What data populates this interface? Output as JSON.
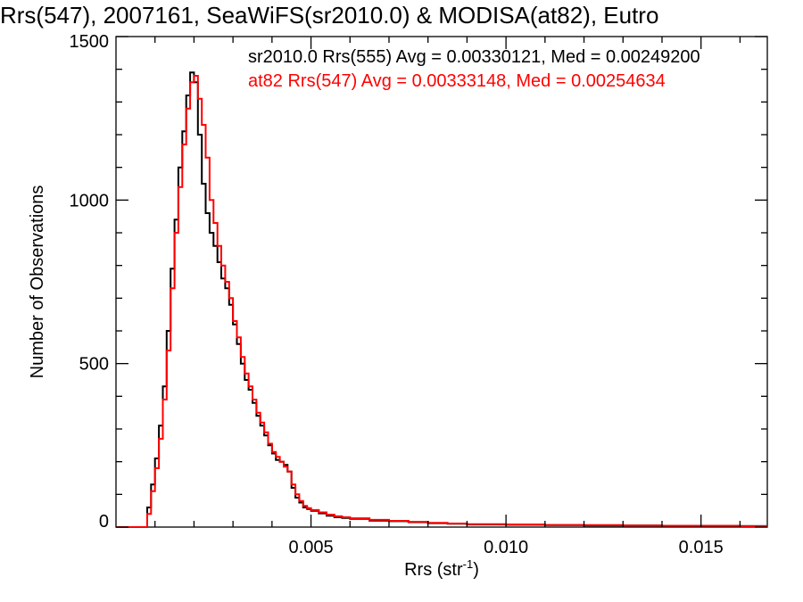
{
  "chart_data": {
    "type": "line",
    "title": "Rrs(547), 2007161, SeaWiFS(sr2010.0) & MODISA(at82), Eutro",
    "xlabel": "Rrs (str",
    "xlabel_sup": "-1",
    "xlabel_close": ")",
    "ylabel": "Number of Observations",
    "xlim": [
      0.0,
      0.0167
    ],
    "ylim": [
      0,
      1500
    ],
    "x_ticks": [
      0.005,
      0.01,
      0.015
    ],
    "x_tick_labels": [
      "0.005",
      "0.010",
      "0.015"
    ],
    "y_ticks": [
      0,
      500,
      1000,
      1500
    ],
    "y_tick_labels": [
      "0",
      "500",
      "1000",
      "1500"
    ],
    "grid": false,
    "legend_position": "top-right",
    "series": [
      {
        "name": "sr2010.0 Rrs(555) Avg = 0.00330121, Med = 0.00249200",
        "color": "#000000",
        "x": [
          0.0,
          0.0007,
          0.0008,
          0.0009,
          0.001,
          0.0011,
          0.0012,
          0.0013,
          0.0014,
          0.0015,
          0.0016,
          0.0017,
          0.0018,
          0.0019,
          0.002,
          0.0021,
          0.0022,
          0.0023,
          0.0024,
          0.0025,
          0.0026,
          0.0027,
          0.0028,
          0.0029,
          0.003,
          0.0031,
          0.0032,
          0.0033,
          0.0034,
          0.0035,
          0.0036,
          0.0037,
          0.0038,
          0.0039,
          0.004,
          0.0041,
          0.0042,
          0.0043,
          0.0044,
          0.0045,
          0.0046,
          0.0047,
          0.0048,
          0.0049,
          0.005,
          0.0052,
          0.0054,
          0.0056,
          0.0058,
          0.006,
          0.0065,
          0.007,
          0.0075,
          0.008,
          0.0085,
          0.009,
          0.01,
          0.011,
          0.012,
          0.013,
          0.014,
          0.015,
          0.016,
          0.0167
        ],
        "y": [
          0,
          0,
          60,
          130,
          210,
          310,
          430,
          600,
          790,
          940,
          1100,
          1210,
          1320,
          1390,
          1360,
          1200,
          1050,
          960,
          900,
          860,
          810,
          760,
          730,
          680,
          620,
          560,
          500,
          450,
          420,
          380,
          340,
          310,
          280,
          250,
          225,
          205,
          200,
          190,
          170,
          120,
          90,
          75,
          60,
          55,
          50,
          42,
          35,
          30,
          28,
          25,
          20,
          18,
          15,
          12,
          10,
          8,
          7,
          6,
          5,
          5,
          4,
          4,
          3,
          3
        ]
      },
      {
        "name": "at82 Rrs(547) Avg = 0.00333148, Med = 0.00254634",
        "color": "#ff0000",
        "x": [
          0.0,
          0.0007,
          0.0008,
          0.0009,
          0.001,
          0.0011,
          0.0012,
          0.0013,
          0.0014,
          0.0015,
          0.0016,
          0.0017,
          0.0018,
          0.0019,
          0.002,
          0.0021,
          0.0022,
          0.0023,
          0.0024,
          0.0025,
          0.0026,
          0.0027,
          0.0028,
          0.0029,
          0.003,
          0.0031,
          0.0032,
          0.0033,
          0.0034,
          0.0035,
          0.0036,
          0.0037,
          0.0038,
          0.0039,
          0.004,
          0.0041,
          0.0042,
          0.0043,
          0.0044,
          0.0045,
          0.0046,
          0.0047,
          0.0048,
          0.0049,
          0.005,
          0.0052,
          0.0054,
          0.0056,
          0.0058,
          0.006,
          0.0065,
          0.007,
          0.0075,
          0.008,
          0.0085,
          0.009,
          0.01,
          0.011,
          0.012,
          0.013,
          0.014,
          0.015,
          0.016,
          0.0167
        ],
        "y": [
          0,
          0,
          40,
          110,
          180,
          270,
          390,
          540,
          730,
          900,
          1040,
          1170,
          1280,
          1360,
          1380,
          1310,
          1230,
          1130,
          1000,
          930,
          860,
          800,
          750,
          700,
          630,
          580,
          520,
          470,
          430,
          390,
          350,
          320,
          290,
          255,
          230,
          215,
          200,
          185,
          170,
          130,
          100,
          80,
          65,
          58,
          52,
          45,
          38,
          33,
          30,
          27,
          22,
          19,
          16,
          13,
          11,
          9,
          8,
          6,
          6,
          5,
          4,
          4,
          3,
          3
        ]
      }
    ]
  }
}
